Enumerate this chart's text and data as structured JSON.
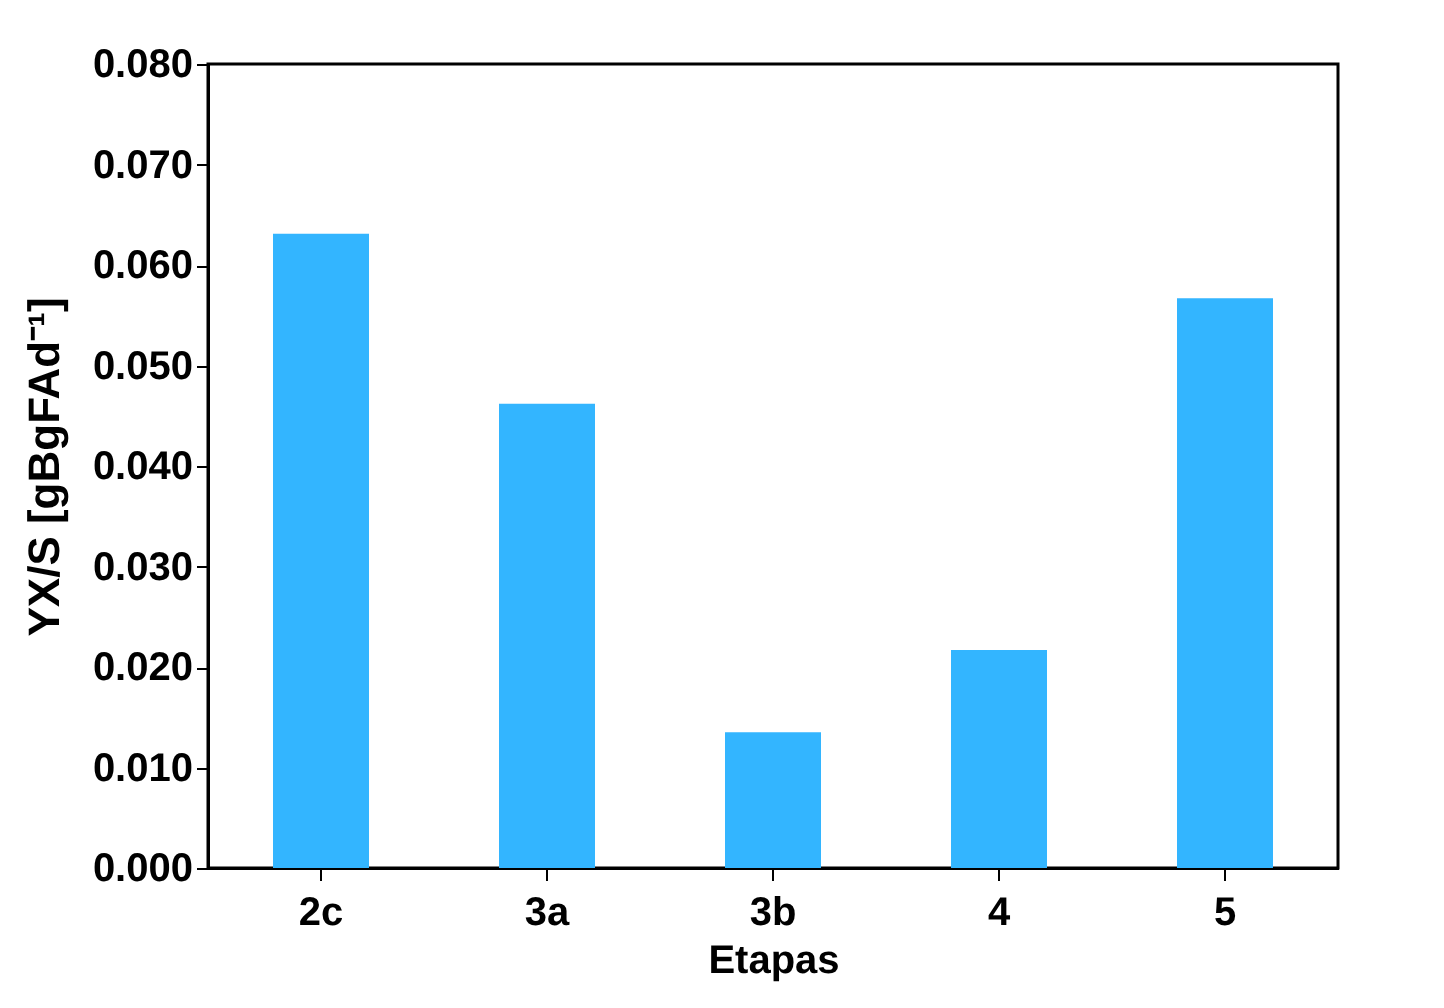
{
  "chart_data": {
    "type": "bar",
    "xlabel": "Etapas",
    "ylabel": "YX/S  [gBgFAd⁻¹]",
    "categories": [
      "2c",
      "3a",
      "3b",
      "4",
      "5"
    ],
    "series": [
      {
        "color": "#33b5ff",
        "values": [
          0.0631,
          0.0462,
          0.0135,
          0.0217,
          0.0567
        ]
      }
    ],
    "ylim": [
      0,
      0.08
    ],
    "yticks": [
      {
        "value": 0,
        "label": "0.000"
      },
      {
        "value": 0.01,
        "label": "0.010"
      },
      {
        "value": 0.02,
        "label": "0.020"
      },
      {
        "value": 0.03,
        "label": "0.030"
      },
      {
        "value": 0.04,
        "label": "0.040"
      },
      {
        "value": 0.05,
        "label": "0.050"
      },
      {
        "value": 0.06,
        "label": "0.060"
      },
      {
        "value": 0.07,
        "label": "0.070"
      },
      {
        "value": 0.08,
        "label": "0.080"
      }
    ],
    "grid": false
  }
}
